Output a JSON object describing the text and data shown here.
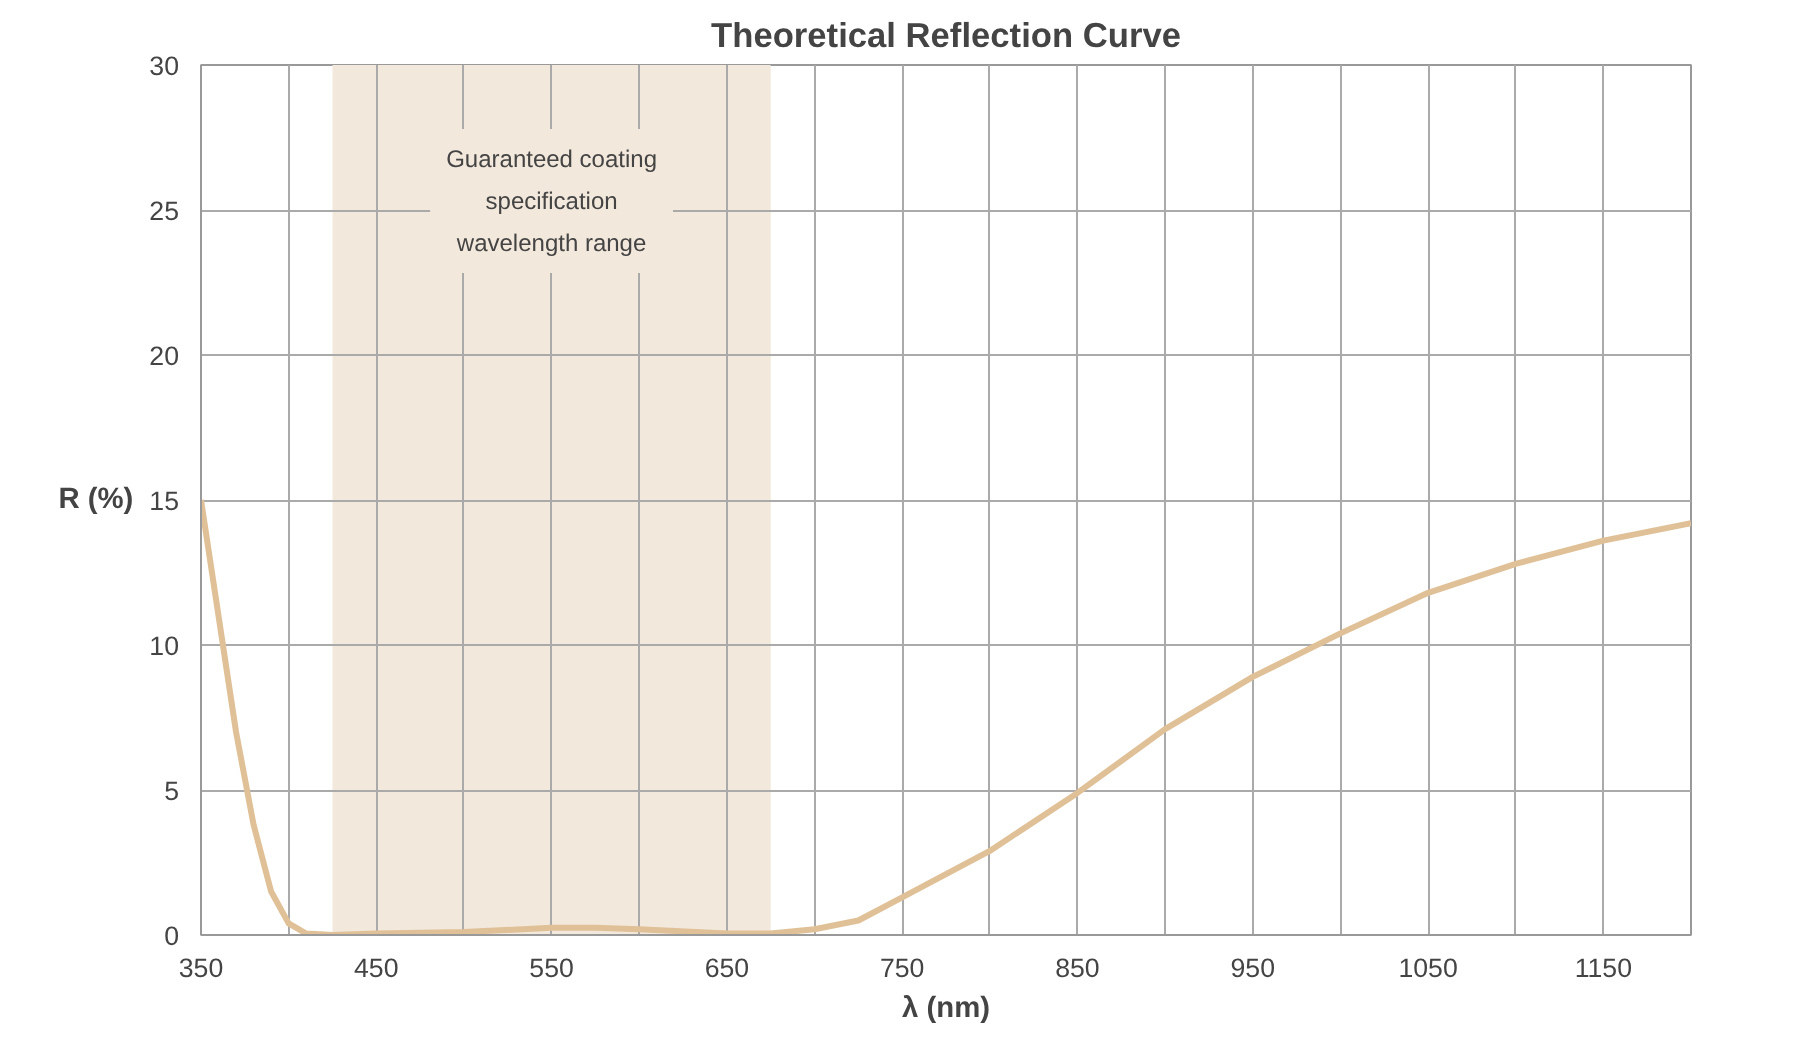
{
  "chart_data": {
    "type": "line",
    "title": "Theoretical Reflection Curve",
    "xlabel": "λ (nm)",
    "ylabel": "R (%)",
    "x": [
      350,
      360,
      370,
      380,
      390,
      400,
      410,
      425,
      450,
      500,
      550,
      575,
      600,
      650,
      675,
      700,
      725,
      750,
      800,
      850,
      900,
      950,
      1000,
      1050,
      1100,
      1150,
      1200
    ],
    "series": [
      {
        "color": "#e0c097",
        "values": [
          15,
          11,
          7,
          3.8,
          1.5,
          0.4,
          0.05,
          0,
          0.05,
          0.1,
          0.25,
          0.25,
          0.2,
          0.05,
          0.05,
          0.2,
          0.5,
          1.3,
          2.9,
          4.9,
          7.1,
          8.9,
          10.4,
          11.8,
          12.8,
          13.6,
          14.2
        ]
      }
    ],
    "xlim": [
      350,
      1200
    ],
    "ylim": [
      0,
      30
    ],
    "xticks": [
      350,
      {
        "value": 400,
        "label": null
      },
      450,
      {
        "value": 500,
        "label": null
      },
      550,
      {
        "value": 600,
        "label": null
      },
      650,
      {
        "value": 700,
        "label": null
      },
      750,
      {
        "value": 800,
        "label": null
      },
      850,
      {
        "value": 900,
        "label": null
      },
      950,
      {
        "value": 1000,
        "label": null
      },
      1050,
      {
        "value": 1100,
        "label": null
      },
      1150,
      {
        "value": 1200,
        "label": null
      }
    ],
    "yticks": [
      0,
      5,
      10,
      15,
      20,
      25,
      30
    ],
    "bands": [
      {
        "axis": "x",
        "from": 425,
        "to": 675,
        "label": "Guaranteed coating specification wavelength range",
        "color": "#f3e8dc"
      }
    ],
    "grid": true,
    "marker": "none",
    "line_style": "solid"
  }
}
